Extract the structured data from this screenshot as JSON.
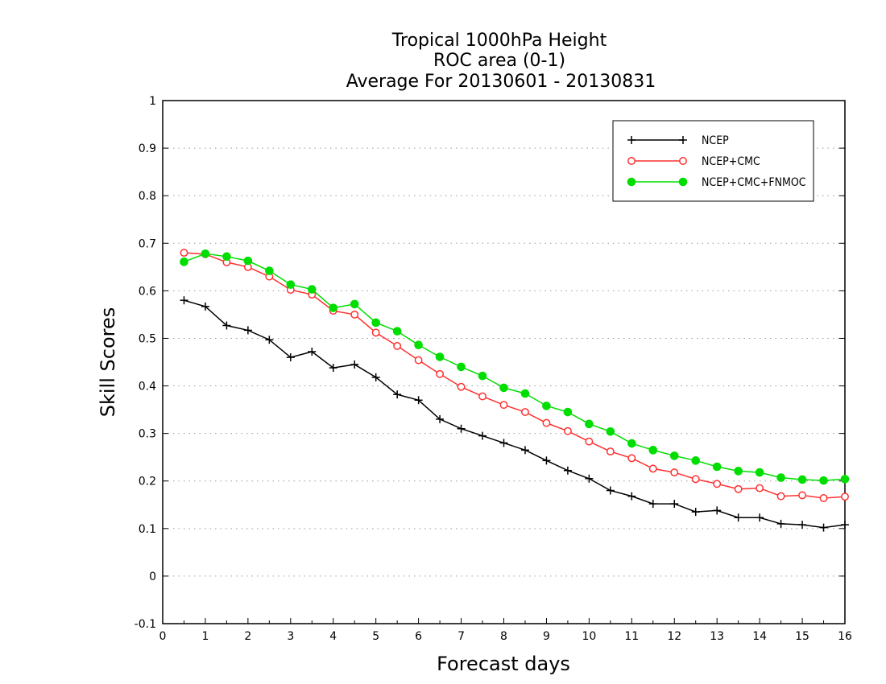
{
  "chart_data": {
    "type": "line",
    "title_lines": [
      "Tropical 1000hPa Height",
      "ROC area (0-1)",
      "Average For 20130601 - 20130831"
    ],
    "xlabel": "Forecast days",
    "ylabel": "Skill Scores",
    "xlim": [
      0,
      16
    ],
    "ylim": [
      -0.1,
      1
    ],
    "x_ticks": [
      "0",
      "1",
      "2",
      "3",
      "4",
      "5",
      "6",
      "7",
      "8",
      "9",
      "10",
      "11",
      "12",
      "13",
      "14",
      "15",
      "16"
    ],
    "y_ticks": [
      "-0.1",
      "0",
      "0.1",
      "0.2",
      "0.3",
      "0.4",
      "0.5",
      "0.6",
      "0.7",
      "0.8",
      "0.9",
      "1"
    ],
    "grid": "horizontal dotted",
    "legend_position": "top-right",
    "x": [
      0.5,
      1,
      1.5,
      2,
      2.5,
      3,
      3.5,
      4,
      4.5,
      5,
      5.5,
      6,
      6.5,
      7,
      7.5,
      8,
      8.5,
      9,
      9.5,
      10,
      10.5,
      11,
      11.5,
      12,
      12.5,
      13,
      13.5,
      14,
      14.5,
      15,
      15.5,
      16
    ],
    "series": [
      {
        "name": "NCEP",
        "color": "#000000",
        "marker": "plus",
        "values": [
          0.58,
          0.567,
          0.527,
          0.517,
          0.497,
          0.46,
          0.472,
          0.438,
          0.445,
          0.418,
          0.382,
          0.37,
          0.33,
          0.31,
          0.295,
          0.28,
          0.265,
          0.243,
          0.222,
          0.205,
          0.18,
          0.168,
          0.152,
          0.152,
          0.135,
          0.138,
          0.123,
          0.123,
          0.11,
          0.108,
          0.102,
          0.108
        ]
      },
      {
        "name": "NCEP+CMC",
        "color": "#ff3030",
        "marker": "open-circle",
        "values": [
          0.68,
          0.677,
          0.66,
          0.65,
          0.63,
          0.602,
          0.592,
          0.558,
          0.55,
          0.512,
          0.484,
          0.454,
          0.425,
          0.398,
          0.378,
          0.36,
          0.345,
          0.322,
          0.305,
          0.283,
          0.262,
          0.248,
          0.226,
          0.218,
          0.204,
          0.194,
          0.183,
          0.185,
          0.168,
          0.17,
          0.164,
          0.167
        ]
      },
      {
        "name": "NCEP+CMC+FNMOC",
        "color": "#00dd00",
        "marker": "filled-circle",
        "values": [
          0.661,
          0.678,
          0.672,
          0.663,
          0.642,
          0.613,
          0.603,
          0.564,
          0.572,
          0.533,
          0.515,
          0.486,
          0.461,
          0.44,
          0.421,
          0.396,
          0.384,
          0.358,
          0.345,
          0.32,
          0.304,
          0.279,
          0.265,
          0.253,
          0.243,
          0.23,
          0.221,
          0.218,
          0.207,
          0.203,
          0.201,
          0.204
        ]
      }
    ]
  }
}
